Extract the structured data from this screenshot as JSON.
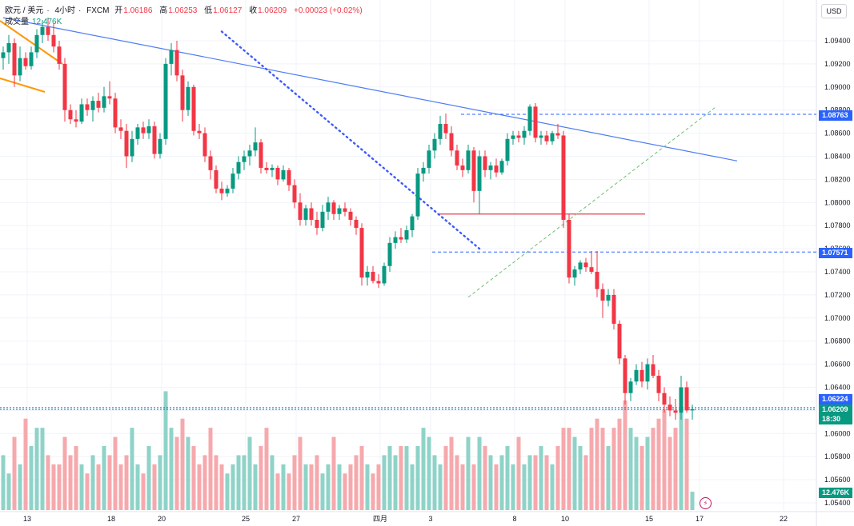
{
  "header": {
    "symbol": "欧元 / 美元",
    "timeframe": "4小时",
    "exchange": "FXCM",
    "open_label": "开",
    "open": "1.06186",
    "high_label": "高",
    "high": "1.06253",
    "low_label": "低",
    "low": "1.06127",
    "close_label": "收",
    "close": "1.06209",
    "change": "+0.00023 (+0.02%)",
    "volume_label": "成交量",
    "volume_value": "12.476K"
  },
  "currency_button": "USD",
  "price_tags": {
    "resistance_high": "1.08763",
    "resistance_low": "1.07571",
    "level_1": "1.06224",
    "last_price": "1.06209",
    "countdown": "18:30",
    "volume": "12.476K"
  },
  "colors": {
    "up": "#089981",
    "down": "#f23645",
    "up_volume": "#8fd3c8",
    "down_volume": "#f6a9ad",
    "trendline": "#4f7df3",
    "accent": "#2962ff"
  },
  "chart_data": {
    "type": "candlestick",
    "interval": "4h",
    "ylim": [
      1.0532,
      1.0962
    ],
    "y_ticks": [
      "1.09400",
      "1.09200",
      "1.09000",
      "1.08800",
      "1.08600",
      "1.08400",
      "1.08200",
      "1.08000",
      "1.07800",
      "1.07600",
      "1.07400",
      "1.07200",
      "1.07000",
      "1.06800",
      "1.06600",
      "1.06400",
      "1.06200",
      "1.06000",
      "1.05800",
      "1.05600",
      "1.05400"
    ],
    "x_labels": [
      "13",
      "18",
      "20",
      "25",
      "27",
      "四月",
      "3",
      "8",
      "10",
      "15",
      "17",
      "22"
    ],
    "grid": true,
    "candles": [
      [
        1.0925,
        1.0935,
        1.0915,
        1.093
      ],
      [
        1.093,
        1.0945,
        1.092,
        1.0938
      ],
      [
        1.0938,
        1.0942,
        1.09,
        1.091
      ],
      [
        1.091,
        1.0935,
        1.0905,
        1.0925
      ],
      [
        1.0925,
        1.093,
        1.0915,
        1.0918
      ],
      [
        1.0918,
        1.0935,
        1.0915,
        1.093
      ],
      [
        1.093,
        1.095,
        1.0925,
        1.0945
      ],
      [
        1.0945,
        1.0958,
        1.0938,
        1.0952
      ],
      [
        1.0952,
        1.096,
        1.094,
        1.0945
      ],
      [
        1.0945,
        1.0955,
        1.093,
        1.0935
      ],
      [
        1.0935,
        1.094,
        1.0915,
        1.092
      ],
      [
        1.092,
        1.0925,
        1.087,
        1.088
      ],
      [
        1.088,
        1.0885,
        1.0868,
        1.0872
      ],
      [
        1.0872,
        1.088,
        1.0865,
        1.087
      ],
      [
        1.087,
        1.089,
        1.0868,
        1.0885
      ],
      [
        1.0885,
        1.089,
        1.0875,
        1.088
      ],
      [
        1.088,
        1.0892,
        1.087,
        1.0888
      ],
      [
        1.0888,
        1.0895,
        1.0878,
        1.0882
      ],
      [
        1.0882,
        1.09,
        1.0878,
        1.0892
      ],
      [
        1.0892,
        1.0905,
        1.0885,
        1.089
      ],
      [
        1.089,
        1.0895,
        1.086,
        1.0865
      ],
      [
        1.0865,
        1.0872,
        1.0855,
        1.0862
      ],
      [
        1.0862,
        1.0868,
        1.083,
        1.084
      ],
      [
        1.084,
        1.0862,
        1.0835,
        1.0855
      ],
      [
        1.0855,
        1.0868,
        1.085,
        1.0865
      ],
      [
        1.0865,
        1.087,
        1.0855,
        1.086
      ],
      [
        1.086,
        1.0872,
        1.0855,
        1.0866
      ],
      [
        1.0866,
        1.087,
        1.0838,
        1.0842
      ],
      [
        1.0842,
        1.086,
        1.0838,
        1.0855
      ],
      [
        1.0855,
        1.0925,
        1.085,
        1.092
      ],
      [
        1.092,
        1.0938,
        1.091,
        1.0932
      ],
      [
        1.0932,
        1.094,
        1.0905,
        1.091
      ],
      [
        1.091,
        1.0915,
        1.087,
        1.088
      ],
      [
        1.088,
        1.0905,
        1.0875,
        1.09
      ],
      [
        1.09,
        1.0902,
        1.0858,
        1.0862
      ],
      [
        1.0862,
        1.0868,
        1.0855,
        1.086
      ],
      [
        1.086,
        1.0865,
        1.0835,
        1.084
      ],
      [
        1.084,
        1.0845,
        1.082,
        1.0828
      ],
      [
        1.0828,
        1.0832,
        1.0808,
        1.0812
      ],
      [
        1.0812,
        1.0818,
        1.0802,
        1.0808
      ],
      [
        1.0808,
        1.0815,
        1.0805,
        1.0812
      ],
      [
        1.0812,
        1.083,
        1.0808,
        1.0825
      ],
      [
        1.0825,
        1.084,
        1.082,
        1.0835
      ],
      [
        1.0835,
        1.0845,
        1.0828,
        1.084
      ],
      [
        1.084,
        1.085,
        1.0832,
        1.0845
      ],
      [
        1.0845,
        1.0865,
        1.084,
        1.0852
      ],
      [
        1.0852,
        1.0855,
        1.0825,
        1.083
      ],
      [
        1.083,
        1.0835,
        1.0825,
        1.0828
      ],
      [
        1.0828,
        1.0833,
        1.0822,
        1.083
      ],
      [
        1.083,
        1.0832,
        1.0815,
        1.082
      ],
      [
        1.082,
        1.0832,
        1.0818,
        1.0828
      ],
      [
        1.0828,
        1.083,
        1.081,
        1.0815
      ],
      [
        1.0815,
        1.082,
        1.0795,
        1.08
      ],
      [
        1.08,
        1.0808,
        1.078,
        1.0785
      ],
      [
        1.0785,
        1.0798,
        1.078,
        1.0795
      ],
      [
        1.0795,
        1.08,
        1.078,
        1.0785
      ],
      [
        1.0785,
        1.0792,
        1.0772,
        1.0778
      ],
      [
        1.0778,
        1.0798,
        1.0775,
        1.0792
      ],
      [
        1.0792,
        1.0805,
        1.0785,
        1.08
      ],
      [
        1.08,
        1.0802,
        1.0785,
        1.079
      ],
      [
        1.079,
        1.0798,
        1.0785,
        1.0795
      ],
      [
        1.0795,
        1.08,
        1.0788,
        1.0792
      ],
      [
        1.0792,
        1.0795,
        1.078,
        1.0785
      ],
      [
        1.0785,
        1.0788,
        1.0772,
        1.0778
      ],
      [
        1.0778,
        1.0782,
        1.0728,
        1.0735
      ],
      [
        1.0735,
        1.0745,
        1.0728,
        1.074
      ],
      [
        1.074,
        1.0745,
        1.073,
        1.0732
      ],
      [
        1.0732,
        1.0738,
        1.0726,
        1.073
      ],
      [
        1.073,
        1.0748,
        1.0728,
        1.0745
      ],
      [
        1.0745,
        1.077,
        1.074,
        1.0765
      ],
      [
        1.0765,
        1.0775,
        1.076,
        1.077
      ],
      [
        1.077,
        1.0778,
        1.0765,
        1.0768
      ],
      [
        1.0768,
        1.078,
        1.0765,
        1.0776
      ],
      [
        1.0776,
        1.079,
        1.077,
        1.0788
      ],
      [
        1.0788,
        1.083,
        1.0785,
        1.0825
      ],
      [
        1.0825,
        1.0835,
        1.0818,
        1.083
      ],
      [
        1.083,
        1.085,
        1.0825,
        1.0845
      ],
      [
        1.0845,
        1.086,
        1.0838,
        1.0855
      ],
      [
        1.0855,
        1.0875,
        1.085,
        1.0868
      ],
      [
        1.0868,
        1.0877,
        1.0855,
        1.086
      ],
      [
        1.086,
        1.0866,
        1.084,
        1.0845
      ],
      [
        1.0845,
        1.085,
        1.0828,
        1.0832
      ],
      [
        1.0832,
        1.0838,
        1.0822,
        1.0828
      ],
      [
        1.0828,
        1.085,
        1.0825,
        1.0845
      ],
      [
        1.0845,
        1.0848,
        1.08,
        1.081
      ],
      [
        1.081,
        1.0845,
        1.079,
        1.084
      ],
      [
        1.084,
        1.0845,
        1.0822,
        1.0828
      ],
      [
        1.0828,
        1.0835,
        1.082,
        1.0832
      ],
      [
        1.0832,
        1.0838,
        1.0822,
        1.0826
      ],
      [
        1.0826,
        1.0838,
        1.0824,
        1.0836
      ],
      [
        1.0836,
        1.086,
        1.0832,
        1.0855
      ],
      [
        1.0855,
        1.0862,
        1.085,
        1.0858
      ],
      [
        1.0858,
        1.0862,
        1.0852,
        1.0856
      ],
      [
        1.0856,
        1.0866,
        1.085,
        1.0862
      ],
      [
        1.0862,
        1.0885,
        1.0858,
        1.0883
      ],
      [
        1.0883,
        1.0886,
        1.0852,
        1.0856
      ],
      [
        1.0856,
        1.0862,
        1.085,
        1.0858
      ],
      [
        1.0858,
        1.0862,
        1.085,
        1.0853
      ],
      [
        1.0853,
        1.0862,
        1.085,
        1.086
      ],
      [
        1.086,
        1.0868,
        1.0855,
        1.0858
      ],
      [
        1.0858,
        1.0862,
        1.0778,
        1.0785
      ],
      [
        1.0785,
        1.079,
        1.073,
        1.0735
      ],
      [
        1.0735,
        1.0745,
        1.0728,
        1.0742
      ],
      [
        1.0742,
        1.075,
        1.0738,
        1.0748
      ],
      [
        1.0748,
        1.0752,
        1.074,
        1.0744
      ],
      [
        1.0744,
        1.0758,
        1.0738,
        1.074
      ],
      [
        1.074,
        1.0758,
        1.0718,
        1.0725
      ],
      [
        1.0725,
        1.073,
        1.07,
        1.0715
      ],
      [
        1.0715,
        1.0725,
        1.071,
        1.072
      ],
      [
        1.072,
        1.0725,
        1.069,
        1.0695
      ],
      [
        1.0695,
        1.0698,
        1.066,
        1.0665
      ],
      [
        1.0665,
        1.0668,
        1.0625,
        1.0635
      ],
      [
        1.0635,
        1.0648,
        1.0628,
        1.0645
      ],
      [
        1.0645,
        1.066,
        1.0642,
        1.0655
      ],
      [
        1.0655,
        1.0662,
        1.064,
        1.0645
      ],
      [
        1.0645,
        1.0665,
        1.0638,
        1.066
      ],
      [
        1.066,
        1.0668,
        1.0648,
        1.065
      ],
      [
        1.065,
        1.0655,
        1.0628,
        1.0635
      ],
      [
        1.0635,
        1.064,
        1.0618,
        1.0625
      ],
      [
        1.0625,
        1.0632,
        1.0615,
        1.062
      ],
      [
        1.062,
        1.063,
        1.0612,
        1.0618
      ],
      [
        1.0618,
        1.065,
        1.0612,
        1.064
      ],
      [
        1.064,
        1.0645,
        1.0618,
        1.062
      ],
      [
        1.062,
        1.0625,
        1.0612,
        1.0621
      ]
    ],
    "volumes": [
      6,
      4,
      8,
      5,
      10,
      7,
      9,
      9,
      6,
      5,
      5,
      8,
      6,
      7,
      5,
      4,
      6,
      5,
      7,
      6,
      8,
      5,
      6,
      9,
      5,
      4,
      7,
      5,
      6,
      13,
      9,
      8,
      10,
      8,
      7,
      5,
      6,
      9,
      6,
      5,
      4,
      5,
      6,
      6,
      8,
      5,
      7,
      9,
      6,
      4,
      5,
      4,
      6,
      8,
      5,
      5,
      6,
      4,
      5,
      8,
      5,
      4,
      5,
      6,
      7,
      5,
      4,
      5,
      6,
      7,
      6,
      7,
      7,
      5,
      7,
      9,
      8,
      6,
      5,
      7,
      8,
      6,
      5,
      8,
      5,
      8,
      7,
      6,
      5,
      6,
      7,
      5,
      8,
      5,
      6,
      6,
      7,
      6,
      5,
      7,
      9,
      9,
      8,
      7,
      6,
      9,
      10,
      9,
      7,
      9,
      10,
      12,
      9,
      8,
      7,
      8,
      9,
      10,
      11,
      8,
      9,
      11,
      10,
      2
    ],
    "horizontal_levels": [
      1.08763,
      1.07571,
      1.06224,
      1.06209
    ],
    "red_level": 1.079,
    "trendlines": [
      {
        "from": [
          0,
          1.096
        ],
        "to": [
          131,
          1.0836
        ]
      },
      {
        "from": [
          39,
          1.0948
        ],
        "to": [
          85,
          1.076
        ]
      },
      {
        "from": [
          83,
          1.0718
        ],
        "to": [
          127,
          1.0882
        ]
      }
    ]
  }
}
